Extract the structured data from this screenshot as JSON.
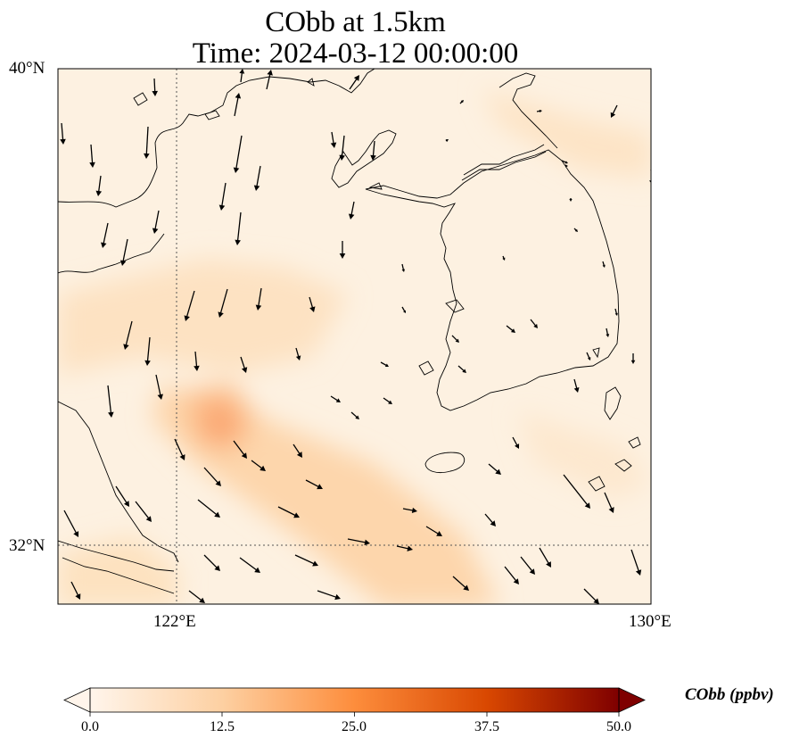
{
  "figure": {
    "title_line1": "CObb at 1.5km",
    "title_line2": "Time: 2024-03-12 00:00:00"
  },
  "map": {
    "lat_ticks": [
      "40°N",
      "32°N"
    ],
    "lon_ticks": [
      "122°E",
      "130°E"
    ],
    "extent": {
      "lon_min": 120,
      "lon_max": 130,
      "lat_min": 31,
      "lat_max": 40
    },
    "gridlines": {
      "lon": 122,
      "lat": 32,
      "style": "dotted"
    },
    "coastline_color": "#000000",
    "vectors": "wind arrows"
  },
  "colorbar": {
    "label": "CObb (ppbv)",
    "ticks": [
      "0.0",
      "12.5",
      "25.0",
      "37.5",
      "50.0"
    ],
    "min": 0,
    "max": 50,
    "extend": "both",
    "colormap": [
      "#fff5eb",
      "#fdd0a2",
      "#fd8d3c",
      "#d94801",
      "#7f0000"
    ]
  }
}
